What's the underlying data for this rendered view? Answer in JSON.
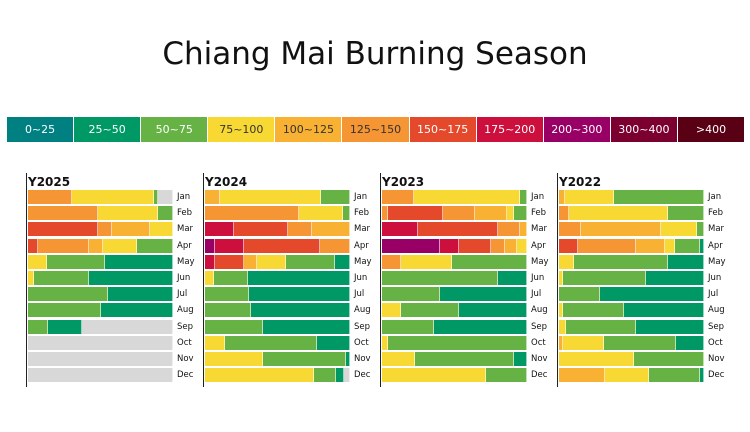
{
  "chart_data": {
    "type": "bar",
    "subtype": "stacked-100-horizontal-small-multiples",
    "title": "Chiang Mai Burning Season",
    "legend": [
      {
        "label": "0~25",
        "color": "#008080"
      },
      {
        "label": "25~50",
        "color": "#009966"
      },
      {
        "label": "50~75",
        "color": "#66b245"
      },
      {
        "label": "75~100",
        "color": "#f8d934"
      },
      {
        "label": "100~125",
        "color": "#f8b133"
      },
      {
        "label": "125~150",
        "color": "#f59534"
      },
      {
        "label": "150~175",
        "color": "#e4492c"
      },
      {
        "label": "175~200",
        "color": "#cc0f3c"
      },
      {
        "label": "200~300",
        "color": "#990066"
      },
      {
        "label": "300~400",
        "color": "#7b0030"
      },
      {
        "label": ">400",
        "color": "#5a0015"
      }
    ],
    "no_data_color": "#d8d8d8",
    "months": [
      "Jan",
      "Feb",
      "Mar",
      "Apr",
      "May",
      "Jun",
      "Jul",
      "Aug",
      "Sep",
      "Oct",
      "Nov",
      "Dec"
    ],
    "panels": [
      {
        "label": "Y2025",
        "rows": [
          [
            {
              "c": "125~150",
              "v": 30
            },
            {
              "c": "75~100",
              "v": 57
            },
            {
              "c": "50~75",
              "v": 3
            },
            {
              "c": "none",
              "v": 10
            }
          ],
          [
            {
              "c": "125~150",
              "v": 48
            },
            {
              "c": "75~100",
              "v": 42
            },
            {
              "c": "50~75",
              "v": 10
            }
          ],
          [
            {
              "c": "150~175",
              "v": 48
            },
            {
              "c": "125~150",
              "v": 10
            },
            {
              "c": "100~125",
              "v": 26
            },
            {
              "c": "75~100",
              "v": 16
            }
          ],
          [
            {
              "c": "150~175",
              "v": 7
            },
            {
              "c": "125~150",
              "v": 35
            },
            {
              "c": "100~125",
              "v": 10
            },
            {
              "c": "75~100",
              "v": 23
            },
            {
              "c": "50~75",
              "v": 25
            }
          ],
          [
            {
              "c": "75~100",
              "v": 13
            },
            {
              "c": "50~75",
              "v": 40
            },
            {
              "c": "25~50",
              "v": 47
            }
          ],
          [
            {
              "c": "75~100",
              "v": 4
            },
            {
              "c": "50~75",
              "v": 38
            },
            {
              "c": "25~50",
              "v": 58
            }
          ],
          [
            {
              "c": "50~75",
              "v": 55
            },
            {
              "c": "25~50",
              "v": 45
            }
          ],
          [
            {
              "c": "50~75",
              "v": 50
            },
            {
              "c": "25~50",
              "v": 50
            }
          ],
          [
            {
              "c": "50~75",
              "v": 14
            },
            {
              "c": "25~50",
              "v": 23
            },
            {
              "c": "none",
              "v": 63
            }
          ],
          [
            {
              "c": "none",
              "v": 100
            }
          ],
          [
            {
              "c": "none",
              "v": 100
            }
          ],
          [
            {
              "c": "none",
              "v": 100
            }
          ]
        ]
      },
      {
        "label": "Y2024",
        "rows": [
          [
            {
              "c": "100~125",
              "v": 10
            },
            {
              "c": "75~100",
              "v": 70
            },
            {
              "c": "50~75",
              "v": 20
            }
          ],
          [
            {
              "c": "125~150",
              "v": 65
            },
            {
              "c": "75~100",
              "v": 30
            },
            {
              "c": "50~75",
              "v": 5
            }
          ],
          [
            {
              "c": "175~200",
              "v": 20
            },
            {
              "c": "150~175",
              "v": 37
            },
            {
              "c": "125~150",
              "v": 17
            },
            {
              "c": "100~125",
              "v": 26
            }
          ],
          [
            {
              "c": "200~300",
              "v": 7
            },
            {
              "c": "175~200",
              "v": 20
            },
            {
              "c": "150~175",
              "v": 52
            },
            {
              "c": "125~150",
              "v": 21
            }
          ],
          [
            {
              "c": "175~200",
              "v": 7
            },
            {
              "c": "150~175",
              "v": 20
            },
            {
              "c": "100~125",
              "v": 9
            },
            {
              "c": "75~100",
              "v": 20
            },
            {
              "c": "50~75",
              "v": 34
            },
            {
              "c": "25~50",
              "v": 10
            }
          ],
          [
            {
              "c": "75~100",
              "v": 6
            },
            {
              "c": "50~75",
              "v": 24
            },
            {
              "c": "25~50",
              "v": 70
            }
          ],
          [
            {
              "c": "50~75",
              "v": 30
            },
            {
              "c": "25~50",
              "v": 70
            }
          ],
          [
            {
              "c": "50~75",
              "v": 32
            },
            {
              "c": "25~50",
              "v": 68
            }
          ],
          [
            {
              "c": "50~75",
              "v": 40
            },
            {
              "c": "25~50",
              "v": 60
            }
          ],
          [
            {
              "c": "75~100",
              "v": 14
            },
            {
              "c": "50~75",
              "v": 63
            },
            {
              "c": "25~50",
              "v": 23
            }
          ],
          [
            {
              "c": "75~100",
              "v": 40
            },
            {
              "c": "50~75",
              "v": 57
            },
            {
              "c": "25~50",
              "v": 3
            }
          ],
          [
            {
              "c": "75~100",
              "v": 75
            },
            {
              "c": "50~75",
              "v": 15
            },
            {
              "c": "25~50",
              "v": 6
            },
            {
              "c": "none",
              "v": 4
            }
          ]
        ]
      },
      {
        "label": "Y2023",
        "rows": [
          [
            {
              "c": "125~150",
              "v": 22
            },
            {
              "c": "75~100",
              "v": 73
            },
            {
              "c": "50~75",
              "v": 5
            }
          ],
          [
            {
              "c": "125~150",
              "v": 4
            },
            {
              "c": "150~175",
              "v": 38
            },
            {
              "c": "125~150",
              "v": 22
            },
            {
              "c": "100~125",
              "v": 22
            },
            {
              "c": "75~100",
              "v": 5
            },
            {
              "c": "50~75",
              "v": 9
            }
          ],
          [
            {
              "c": "175~200",
              "v": 25
            },
            {
              "c": "150~175",
              "v": 55
            },
            {
              "c": "125~150",
              "v": 15
            },
            {
              "c": "100~125",
              "v": 5
            }
          ],
          [
            {
              "c": "200~300",
              "v": 40
            },
            {
              "c": "175~200",
              "v": 13
            },
            {
              "c": "150~175",
              "v": 22
            },
            {
              "c": "125~150",
              "v": 10
            },
            {
              "c": "100~125",
              "v": 8
            },
            {
              "c": "75~100",
              "v": 7
            }
          ],
          [
            {
              "c": "125~150",
              "v": 13
            },
            {
              "c": "75~100",
              "v": 35
            },
            {
              "c": "50~75",
              "v": 52
            }
          ],
          [
            {
              "c": "50~75",
              "v": 80
            },
            {
              "c": "25~50",
              "v": 20
            }
          ],
          [
            {
              "c": "50~75",
              "v": 40
            },
            {
              "c": "25~50",
              "v": 60
            }
          ],
          [
            {
              "c": "75~100",
              "v": 13
            },
            {
              "c": "50~75",
              "v": 40
            },
            {
              "c": "25~50",
              "v": 47
            }
          ],
          [
            {
              "c": "50~75",
              "v": 36
            },
            {
              "c": "25~50",
              "v": 64
            }
          ],
          [
            {
              "c": "75~100",
              "v": 4
            },
            {
              "c": "50~75",
              "v": 96
            }
          ],
          [
            {
              "c": "75~100",
              "v": 23
            },
            {
              "c": "50~75",
              "v": 68
            },
            {
              "c": "25~50",
              "v": 9
            }
          ],
          [
            {
              "c": "75~100",
              "v": 72
            },
            {
              "c": "50~75",
              "v": 28
            }
          ]
        ]
      },
      {
        "label": "Y2022",
        "rows": [
          [
            {
              "c": "100~125",
              "v": 4
            },
            {
              "c": "75~100",
              "v": 34
            },
            {
              "c": "50~75",
              "v": 62
            }
          ],
          [
            {
              "c": "125~150",
              "v": 7
            },
            {
              "c": "75~100",
              "v": 68
            },
            {
              "c": "50~75",
              "v": 25
            }
          ],
          [
            {
              "c": "125~150",
              "v": 15
            },
            {
              "c": "100~125",
              "v": 55
            },
            {
              "c": "75~100",
              "v": 25
            },
            {
              "c": "50~75",
              "v": 5
            }
          ],
          [
            {
              "c": "150~175",
              "v": 13
            },
            {
              "c": "125~150",
              "v": 40
            },
            {
              "c": "100~125",
              "v": 20
            },
            {
              "c": "75~100",
              "v": 7
            },
            {
              "c": "50~75",
              "v": 17
            },
            {
              "c": "25~50",
              "v": 3
            }
          ],
          [
            {
              "c": "75~100",
              "v": 10
            },
            {
              "c": "50~75",
              "v": 65
            },
            {
              "c": "25~50",
              "v": 25
            }
          ],
          [
            {
              "c": "75~100",
              "v": 3
            },
            {
              "c": "50~75",
              "v": 57
            },
            {
              "c": "25~50",
              "v": 40
            }
          ],
          [
            {
              "c": "50~75",
              "v": 28
            },
            {
              "c": "25~50",
              "v": 72
            }
          ],
          [
            {
              "c": "75~100",
              "v": 3
            },
            {
              "c": "50~75",
              "v": 42
            },
            {
              "c": "25~50",
              "v": 55
            }
          ],
          [
            {
              "c": "75~100",
              "v": 5
            },
            {
              "c": "50~75",
              "v": 48
            },
            {
              "c": "25~50",
              "v": 47
            }
          ],
          [
            {
              "c": "100~125",
              "v": 3
            },
            {
              "c": "75~100",
              "v": 28
            },
            {
              "c": "50~75",
              "v": 50
            },
            {
              "c": "25~50",
              "v": 19
            }
          ],
          [
            {
              "c": "75~100",
              "v": 52
            },
            {
              "c": "50~75",
              "v": 48
            }
          ],
          [
            {
              "c": "100~125",
              "v": 32
            },
            {
              "c": "75~100",
              "v": 30
            },
            {
              "c": "50~75",
              "v": 35
            },
            {
              "c": "25~50",
              "v": 3
            }
          ]
        ]
      }
    ]
  }
}
